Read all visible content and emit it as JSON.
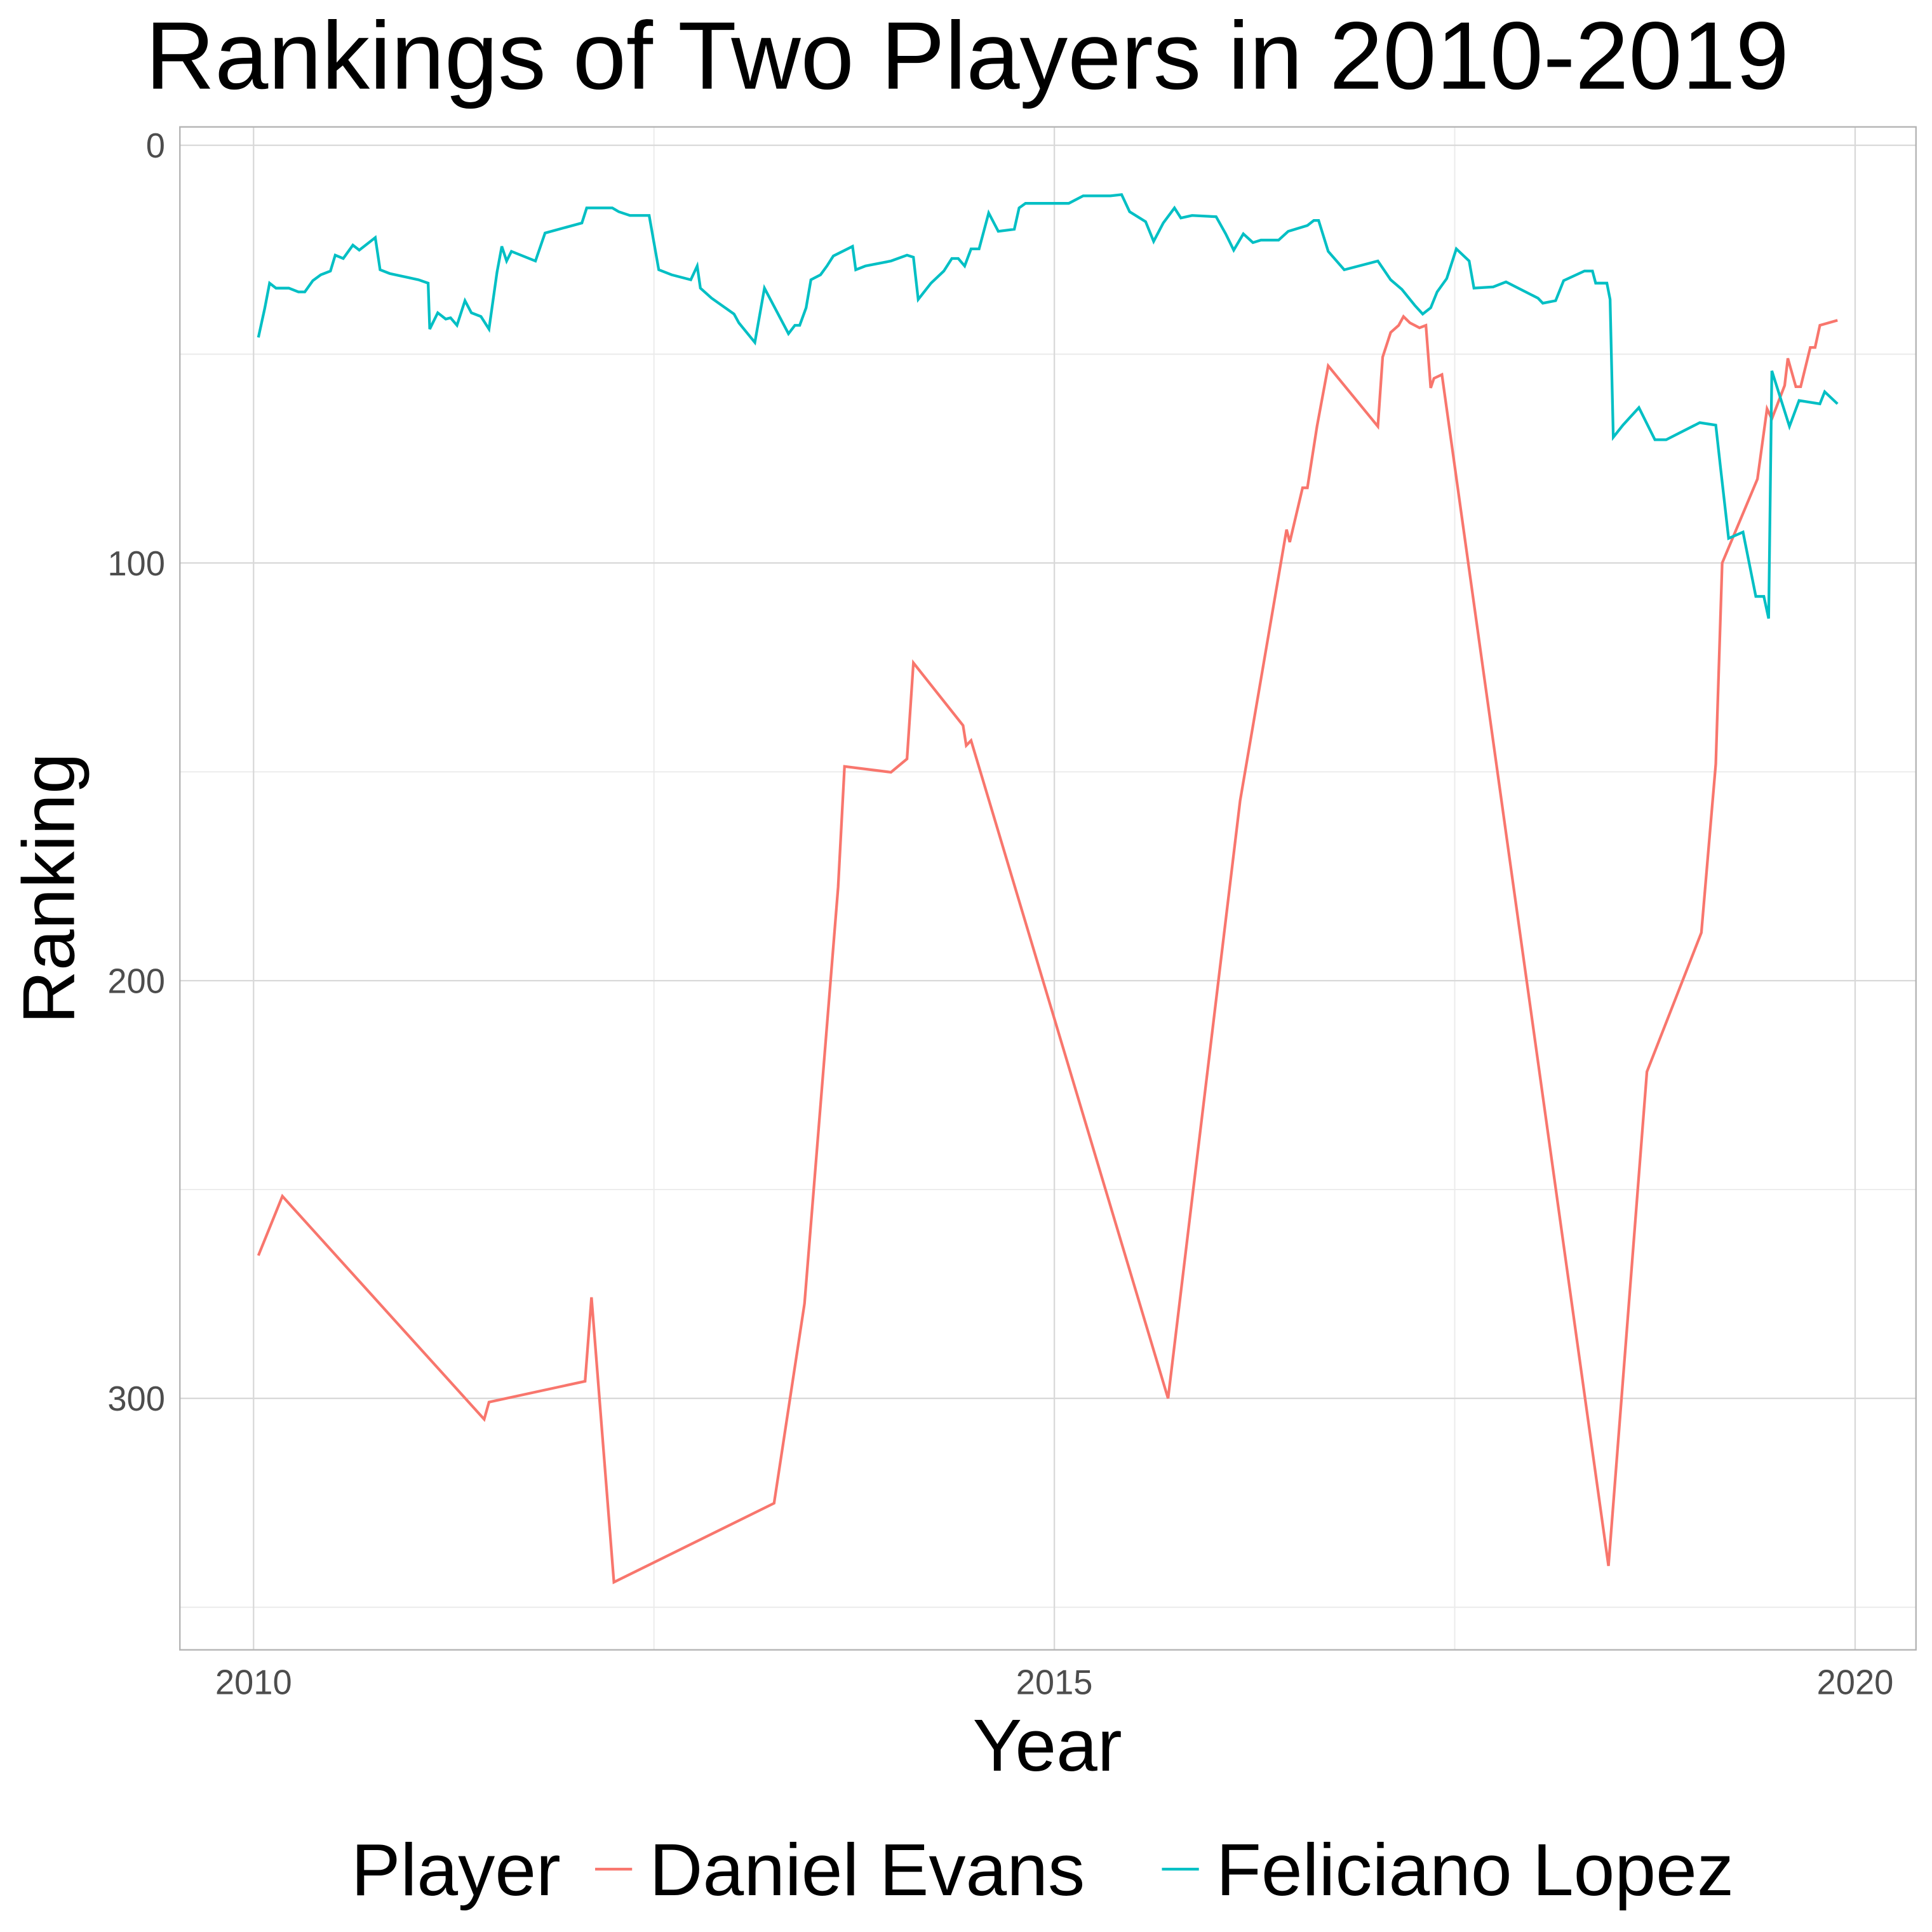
{
  "chart_data": {
    "type": "line",
    "title": "Rankings of Two Players in 2010-2019",
    "x_label": "Year",
    "y_label": "Ranking",
    "legend_title": "Player",
    "legend_position": "bottom",
    "grid": true,
    "y_reversed": true,
    "xlim": [
      2009.54,
      2020.38
    ],
    "xticks": [
      2010,
      2015,
      2020
    ],
    "ylim": [
      -4.4,
      360.2
    ],
    "yticks": [
      0,
      100,
      200,
      300
    ],
    "series": [
      {
        "name": "Daniel Evans",
        "color": "#f8766d",
        "x": [
          2010.03,
          2010.18,
          2011.44,
          2011.47,
          2012.07,
          2012.11,
          2012.25,
          2013.25,
          2013.44,
          2013.65,
          2013.69,
          2013.98,
          2014.08,
          2014.12,
          2014.43,
          2014.45,
          2014.48,
          2015.71,
          2016.16,
          2016.45,
          2016.47,
          2016.55,
          2016.58,
          2016.64,
          2016.71,
          2017.02,
          2017.05,
          2017.1,
          2017.15,
          2017.18,
          2017.22,
          2017.28,
          2017.32,
          2017.35,
          2017.37,
          2017.42,
          2018.46,
          2018.7,
          2019.04,
          2019.13,
          2019.17,
          2019.39,
          2019.45,
          2019.48,
          2019.56,
          2019.58,
          2019.63,
          2019.66,
          2019.72,
          2019.75,
          2019.78,
          2019.89
        ],
        "values": [
          265.8,
          251.6,
          305.0,
          300.9,
          295.9,
          275.8,
          344.0,
          325.1,
          277.3,
          177.6,
          148.7,
          150.1,
          146.9,
          123.9,
          138.9,
          143.7,
          142.5,
          300.0,
          156.9,
          92.0,
          95.0,
          82.0,
          82.0,
          67.3,
          52.8,
          67.3,
          50.7,
          44.8,
          43.1,
          41.0,
          42.5,
          43.7,
          43.1,
          58.1,
          55.8,
          54.9,
          340.1,
          221.8,
          188.5,
          148.1,
          100.0,
          79.9,
          63.1,
          65.5,
          57.5,
          51.0,
          57.8,
          57.8,
          48.4,
          48.4,
          43.1,
          41.9
        ]
      },
      {
        "name": "Feliciano Lopez",
        "color": "#00bfc4",
        "x": [
          2010.03,
          2010.07,
          2010.1,
          2010.14,
          2010.22,
          2010.28,
          2010.32,
          2010.37,
          2010.42,
          2010.48,
          2010.51,
          2010.56,
          2010.62,
          2010.66,
          2010.76,
          2010.79,
          2010.85,
          2011.03,
          2011.09,
          2011.1,
          2011.15,
          2011.2,
          2011.23,
          2011.27,
          2011.32,
          2011.36,
          2011.42,
          2011.47,
          2011.52,
          2011.55,
          2011.58,
          2011.61,
          2011.76,
          2011.82,
          2012.05,
          2012.08,
          2012.24,
          2012.28,
          2012.35,
          2012.47,
          2012.53,
          2012.61,
          2012.73,
          2012.77,
          2012.79,
          2012.86,
          2013.0,
          2013.03,
          2013.13,
          2013.19,
          2013.34,
          2013.38,
          2013.41,
          2013.45,
          2013.48,
          2013.54,
          2013.58,
          2013.62,
          2013.74,
          2013.76,
          2013.82,
          2013.98,
          2014.08,
          2014.12,
          2014.15,
          2014.23,
          2014.31,
          2014.36,
          2014.4,
          2014.44,
          2014.48,
          2014.53,
          2014.59,
          2014.65,
          2014.75,
          2014.78,
          2014.82,
          2015.09,
          2015.18,
          2015.35,
          2015.42,
          2015.47,
          2015.57,
          2015.62,
          2015.68,
          2015.75,
          2015.79,
          2015.86,
          2016.01,
          2016.07,
          2016.12,
          2016.18,
          2016.24,
          2016.29,
          2016.4,
          2016.46,
          2016.58,
          2016.62,
          2016.65,
          2016.71,
          2016.81,
          2017.02,
          2017.1,
          2017.17,
          2017.25,
          2017.3,
          2017.35,
          2017.39,
          2017.45,
          2017.51,
          2017.59,
          2017.62,
          2017.74,
          2017.82,
          2018.02,
          2018.05,
          2018.13,
          2018.18,
          2018.31,
          2018.36,
          2018.38,
          2018.45,
          2018.47,
          2018.49,
          2018.55,
          2018.65,
          2018.75,
          2018.82,
          2019.03,
          2019.13,
          2019.16,
          2019.21,
          2019.3,
          2019.38,
          2019.43,
          2019.46,
          2019.48,
          2019.59,
          2019.65,
          2019.78,
          2019.81,
          2019.89
        ],
        "values": [
          46.0,
          39.0,
          33.0,
          34.2,
          34.2,
          35.1,
          35.1,
          32.4,
          31.0,
          30.1,
          26.3,
          27.1,
          23.9,
          25.1,
          22.1,
          29.8,
          30.7,
          32.2,
          33.0,
          44.0,
          40.1,
          41.6,
          41.3,
          43.1,
          37.2,
          40.1,
          41.0,
          44.0,
          30.4,
          24.2,
          27.7,
          25.4,
          27.7,
          21.0,
          18.6,
          15.0,
          15.0,
          15.9,
          16.8,
          16.8,
          29.8,
          31.0,
          32.2,
          28.9,
          34.2,
          36.6,
          40.4,
          42.5,
          47.2,
          34.2,
          45.1,
          43.1,
          43.1,
          38.9,
          32.2,
          31.0,
          28.9,
          26.5,
          24.2,
          29.8,
          28.9,
          27.7,
          26.3,
          26.8,
          36.9,
          33.0,
          30.1,
          27.1,
          27.1,
          28.9,
          24.8,
          24.8,
          16.2,
          20.6,
          20.1,
          15.0,
          13.9,
          13.9,
          12.1,
          12.1,
          11.8,
          15.9,
          18.3,
          23.0,
          18.6,
          15.0,
          17.4,
          16.8,
          17.1,
          21.2,
          25.1,
          21.2,
          23.3,
          22.7,
          22.7,
          20.6,
          19.2,
          18.0,
          18.0,
          25.4,
          29.8,
          27.7,
          32.2,
          34.5,
          38.3,
          40.4,
          38.9,
          35.1,
          31.9,
          24.8,
          27.7,
          34.2,
          33.9,
          32.7,
          36.6,
          37.8,
          37.2,
          32.4,
          30.1,
          30.1,
          33.0,
          33.0,
          36.9,
          69.9,
          67.0,
          62.8,
          70.5,
          70.5,
          66.4,
          67.0,
          77.3,
          94.1,
          92.6,
          108.0,
          108.0,
          113.3,
          54.0,
          67.3,
          61.1,
          61.9,
          59.0,
          61.9
        ]
      }
    ]
  }
}
